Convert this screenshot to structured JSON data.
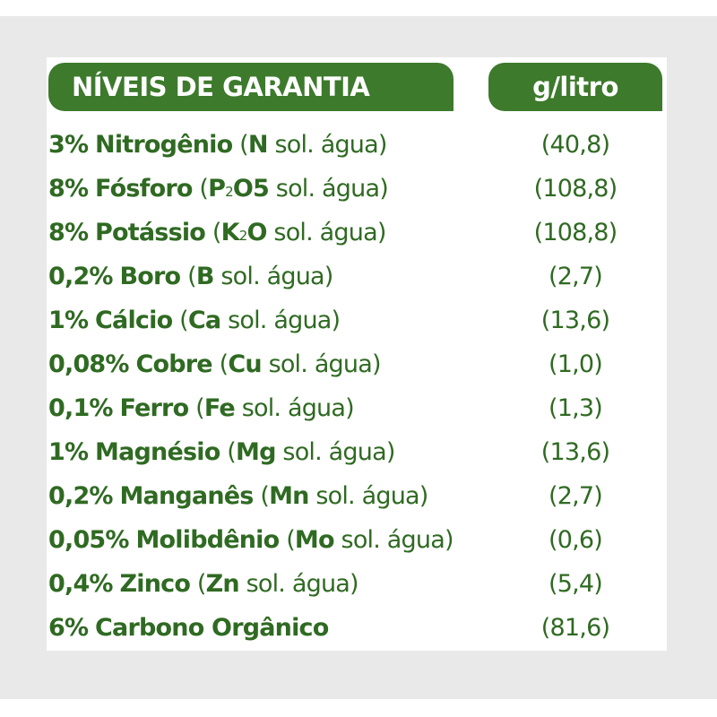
{
  "header": {
    "title": "NÍVEIS DE GARANTIA",
    "unit": "g/litro"
  },
  "rows": [
    {
      "pct": "3%",
      "name": "Nitrogênio",
      "open": "(",
      "symbol": "N",
      "sub": "",
      "rest": "",
      "sol": "sol. água)",
      "value": "(40,8)"
    },
    {
      "pct": "8%",
      "name": "Fósforo",
      "open": "(",
      "symbol": "P",
      "sub": "2",
      "rest": "O5",
      "sol": "sol. água)",
      "value": "(108,8)"
    },
    {
      "pct": "8%",
      "name": "Potássio",
      "open": "(",
      "symbol": "K",
      "sub": "2",
      "rest": "O",
      "sol": "sol. água)",
      "value": "(108,8)"
    },
    {
      "pct": "0,2%",
      "name": "Boro",
      "open": "(",
      "symbol": "B",
      "sub": "",
      "rest": "",
      "sol": "sol. água)",
      "value": "(2,7)"
    },
    {
      "pct": "1%",
      "name": "Cálcio",
      "open": "(",
      "symbol": "Ca",
      "sub": "",
      "rest": "",
      "sol": "sol. água)",
      "value": "(13,6)"
    },
    {
      "pct": "0,08%",
      "name": "Cobre",
      "open": "(",
      "symbol": "Cu",
      "sub": "",
      "rest": "",
      "sol": "sol. água)",
      "value": "(1,0)"
    },
    {
      "pct": "0,1%",
      "name": "Ferro",
      "open": "(",
      "symbol": "Fe",
      "sub": "",
      "rest": "",
      "sol": "sol. água)",
      "value": "(1,3)"
    },
    {
      "pct": "1%",
      "name": "Magnésio",
      "open": "(",
      "symbol": "Mg",
      "sub": "",
      "rest": "",
      "sol": "sol. água)",
      "value": "(13,6)"
    },
    {
      "pct": "0,2%",
      "name": "Manganês",
      "open": "(",
      "symbol": "Mn",
      "sub": "",
      "rest": "",
      "sol": "sol. água)",
      "value": "(2,7)"
    },
    {
      "pct": "0,05%",
      "name": "Molibdênio",
      "open": "(",
      "symbol": "Mo",
      "sub": "",
      "rest": "",
      "sol": "sol. água)",
      "value": "(0,6)"
    },
    {
      "pct": "0,4%",
      "name": "Zinco",
      "open": "(",
      "symbol": "Zn",
      "sub": "",
      "rest": "",
      "sol": "sol. água)",
      "value": "(5,4)"
    },
    {
      "pct": "6%",
      "name": "Carbono Orgânico",
      "open": "",
      "symbol": "",
      "sub": "",
      "rest": "",
      "sol": "",
      "value": "(81,6)"
    }
  ]
}
